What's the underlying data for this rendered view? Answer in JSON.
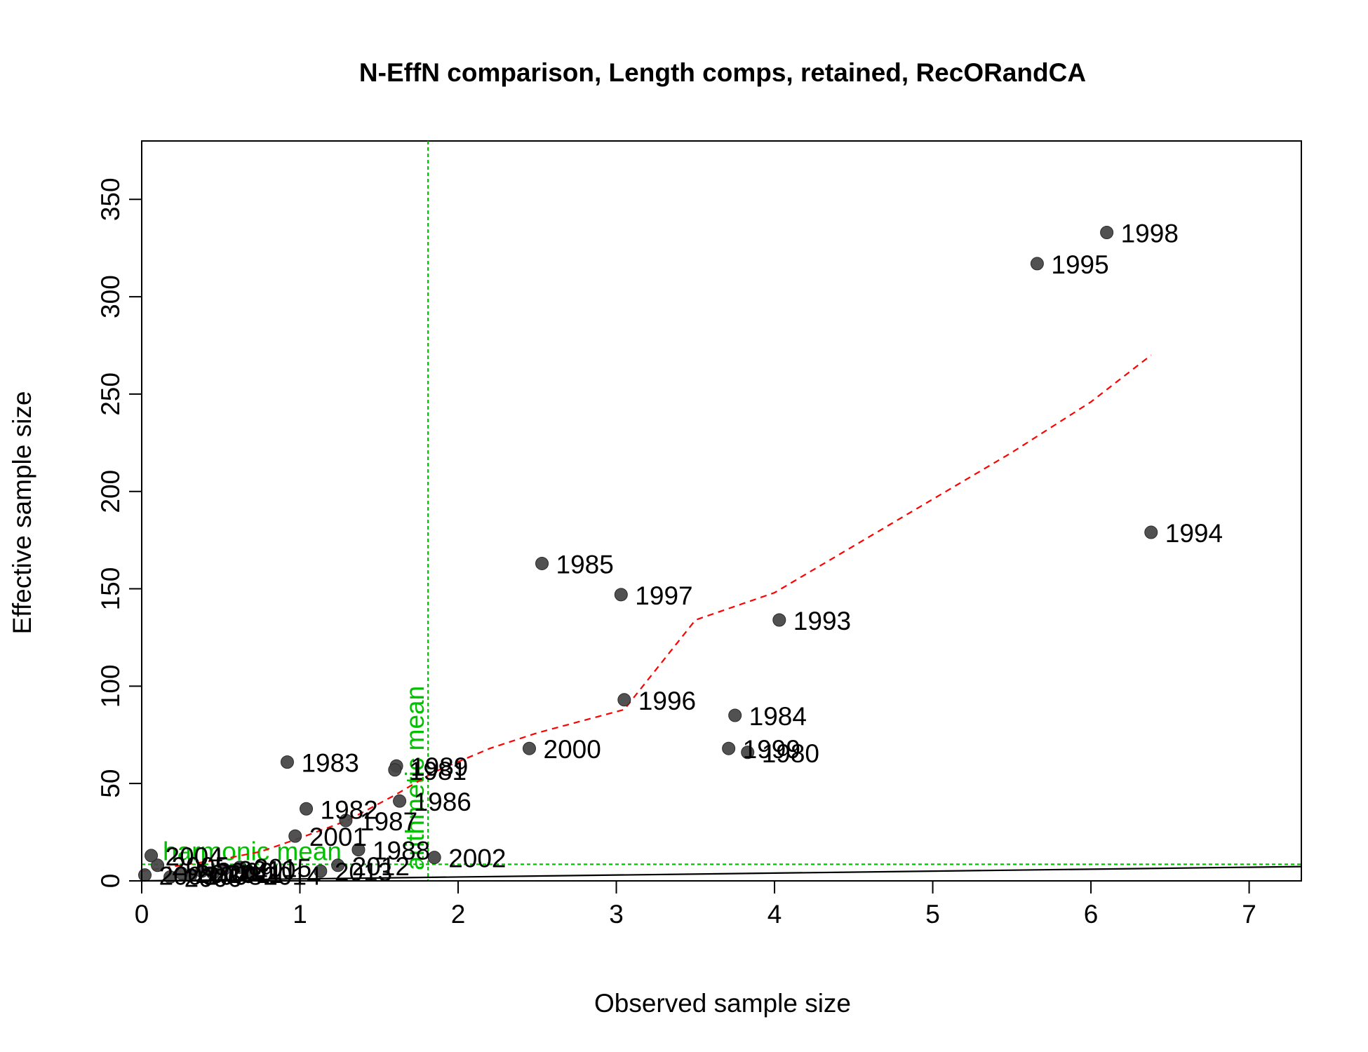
{
  "chart_data": {
    "type": "scatter",
    "title": "N-EffN comparison, Length comps, retained, RecORandCA",
    "xlabel": "Observed sample size",
    "ylabel": "Effective sample size",
    "xlim": [
      0,
      7.33
    ],
    "ylim": [
      0,
      380
    ],
    "x_ticks": [
      0,
      1,
      2,
      3,
      4,
      5,
      6,
      7
    ],
    "y_ticks": [
      0,
      50,
      100,
      150,
      200,
      250,
      300,
      350
    ],
    "grid": false,
    "points": [
      {
        "label": "1998",
        "x": 6.1,
        "y": 333
      },
      {
        "label": "1995",
        "x": 5.66,
        "y": 317
      },
      {
        "label": "1994",
        "x": 6.38,
        "y": 179
      },
      {
        "label": "1985",
        "x": 2.53,
        "y": 163
      },
      {
        "label": "1997",
        "x": 3.03,
        "y": 147
      },
      {
        "label": "1993",
        "x": 4.03,
        "y": 134
      },
      {
        "label": "1996",
        "x": 3.05,
        "y": 93
      },
      {
        "label": "1984",
        "x": 3.75,
        "y": 85
      },
      {
        "label": "1999",
        "x": 3.71,
        "y": 68
      },
      {
        "label": "1980",
        "x": 3.83,
        "y": 66
      },
      {
        "label": "2000",
        "x": 2.45,
        "y": 68
      },
      {
        "label": "1983",
        "x": 0.92,
        "y": 61
      },
      {
        "label": "1989",
        "x": 1.61,
        "y": 59
      },
      {
        "label": "1981",
        "x": 1.6,
        "y": 57
      },
      {
        "label": "1986",
        "x": 1.63,
        "y": 41
      },
      {
        "label": "1982",
        "x": 1.04,
        "y": 37
      },
      {
        "label": "1987",
        "x": 1.29,
        "y": 31
      },
      {
        "label": "2001",
        "x": 0.97,
        "y": 23
      },
      {
        "label": "1988",
        "x": 1.37,
        "y": 16
      },
      {
        "label": "2002",
        "x": 1.85,
        "y": 12
      },
      {
        "label": "2012",
        "x": 1.24,
        "y": 8
      },
      {
        "label": "2013",
        "x": 1.13,
        "y": 5
      },
      {
        "label": "2015",
        "x": 0.62,
        "y": 7
      },
      {
        "label": "2014",
        "x": 0.68,
        "y": 3
      },
      {
        "label": "2010",
        "x": 0.52,
        "y": 6
      },
      {
        "label": "2011",
        "x": 0.45,
        "y": 4
      },
      {
        "label": "2009",
        "x": 0.38,
        "y": 5
      },
      {
        "label": "2008",
        "x": 0.31,
        "y": 3
      },
      {
        "label": "2007",
        "x": 0.25,
        "y": 4
      },
      {
        "label": "2006",
        "x": 0.18,
        "y": 2
      },
      {
        "label": "2005",
        "x": 0.1,
        "y": 8
      },
      {
        "label": "2004",
        "x": 0.06,
        "y": 13
      },
      {
        "label": "2003",
        "x": 0.02,
        "y": 3
      }
    ],
    "smoother": {
      "x": [
        0.0,
        0.25,
        0.5,
        0.75,
        1.0,
        1.3,
        1.6,
        1.85,
        2.2,
        2.5,
        3.05,
        3.5,
        4.0,
        4.5,
        5.0,
        5.5,
        6.0,
        6.38
      ],
      "y": [
        5,
        8,
        11,
        15,
        22,
        31,
        44,
        56,
        68,
        76,
        88,
        134,
        148,
        172,
        196,
        220,
        246,
        270
      ],
      "color": "#ff0000"
    },
    "one_to_one_line": {
      "x": [
        0,
        7.33
      ],
      "y": [
        0,
        7.33
      ],
      "color": "#000000"
    },
    "reference_lines": [
      {
        "name": "arithmetic mean",
        "orientation": "vertical",
        "value": 1.81,
        "color": "#00c000"
      },
      {
        "name": "harmonic mean",
        "orientation": "horizontal",
        "value": 8.5,
        "color": "#00c000"
      }
    ],
    "point_color": "#444444"
  }
}
